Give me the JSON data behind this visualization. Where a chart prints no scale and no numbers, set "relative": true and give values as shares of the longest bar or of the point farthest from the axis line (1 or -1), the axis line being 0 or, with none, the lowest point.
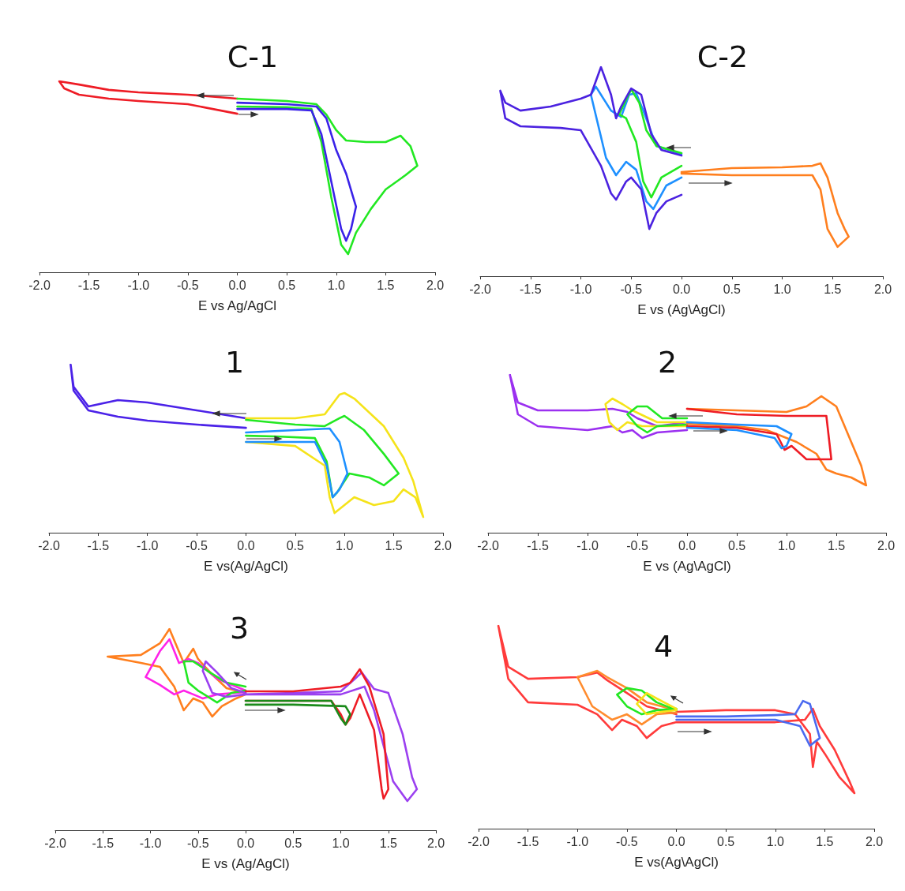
{
  "chart_data": [
    {
      "type": "line",
      "title": "C-1",
      "xlabel": "E vs Ag/AgCl",
      "relative": true,
      "tick_labels": "x",
      "xlim": [
        -2,
        2
      ],
      "xticks": [
        {
          "value": -2,
          "label": "-2.0"
        },
        {
          "value": -1.5,
          "label": "-1.5"
        },
        {
          "value": -1,
          "label": "-1.0"
        },
        {
          "value": -0.5,
          "label": "-0.5"
        },
        {
          "value": 0,
          "label": "0.0"
        },
        {
          "value": 0.5,
          "label": "0.5"
        },
        {
          "value": 1,
          "label": "1.0"
        },
        {
          "value": 1.5,
          "label": "1.5"
        },
        {
          "value": 2,
          "label": "2.0"
        }
      ],
      "series": [
        {
          "color": "#ee1c25",
          "x": [
            0,
            -0.5,
            -1.0,
            -1.3,
            -1.6,
            -1.8,
            -1.75,
            -1.6,
            -1.3,
            -1.0,
            -0.5,
            0
          ],
          "values": [
            0.909,
            0.93,
            0.942,
            0.955,
            0.983,
            1.0,
            0.963,
            0.93,
            0.909,
            0.897,
            0.88,
            0.83
          ]
        },
        {
          "color": "#22e822",
          "x": [
            0,
            0.5,
            0.8,
            0.9,
            1.0,
            1.1,
            1.3,
            1.5,
            1.65,
            1.75,
            1.82,
            1.7,
            1.5,
            1.35,
            1.2,
            1.12,
            1.05,
            0.95,
            0.85,
            0.75,
            0.5,
            0
          ],
          "values": [
            0.909,
            0.897,
            0.88,
            0.826,
            0.744,
            0.69,
            0.682,
            0.682,
            0.715,
            0.661,
            0.558,
            0.508,
            0.434,
            0.331,
            0.207,
            0.095,
            0.145,
            0.393,
            0.682,
            0.855,
            0.864,
            0.868
          ]
        },
        {
          "color": "#3a22e8",
          "x": [
            0,
            0.5,
            0.8,
            0.9,
            1.0,
            1.1,
            1.2,
            1.15,
            1.1,
            1.05,
            0.95,
            0.85,
            0.75,
            0.5,
            0
          ],
          "values": [
            0.888,
            0.88,
            0.868,
            0.806,
            0.64,
            0.517,
            0.343,
            0.227,
            0.165,
            0.227,
            0.475,
            0.723,
            0.847,
            0.855,
            0.855
          ]
        }
      ]
    },
    {
      "type": "line",
      "title": "C-2",
      "xlabel": "E vs (Ag\\AgCl)",
      "relative": true,
      "tick_labels": "x",
      "xlim": [
        -2,
        2
      ],
      "xticks": [
        {
          "value": -2,
          "label": "-2.0"
        },
        {
          "value": -1.5,
          "label": "-1.5"
        },
        {
          "value": -1,
          "label": "-1.0"
        },
        {
          "value": -0.5,
          "label": "-0.5"
        },
        {
          "value": 0,
          "label": "0.0"
        },
        {
          "value": 0.5,
          "label": "0.5"
        },
        {
          "value": 1,
          "label": "1.0"
        },
        {
          "value": 1.5,
          "label": "1.5"
        },
        {
          "value": 2,
          "label": "2.0"
        }
      ],
      "series": [
        {
          "color": "#ff7f1e",
          "x": [
            0,
            0.5,
            1.0,
            1.3,
            1.38,
            1.45,
            1.55,
            1.62,
            1.66,
            1.55,
            1.45,
            1.38,
            1.3,
            1.0,
            0.5,
            0
          ],
          "values": [
            0.498,
            0.517,
            0.521,
            0.528,
            0.54,
            0.472,
            0.302,
            0.226,
            0.189,
            0.14,
            0.226,
            0.415,
            0.483,
            0.483,
            0.483,
            0.491
          ]
        },
        {
          "color": "#1e90ff",
          "x": [
            0,
            -0.15,
            -0.28,
            -0.35,
            -0.45,
            -0.55,
            -0.65,
            -0.75,
            -0.9,
            -0.85,
            -0.7,
            -0.6,
            -0.52,
            -0.45,
            -0.38,
            -0.25,
            0
          ],
          "values": [
            0.472,
            0.434,
            0.321,
            0.358,
            0.509,
            0.547,
            0.483,
            0.566,
            0.868,
            0.906,
            0.792,
            0.762,
            0.868,
            0.875,
            0.792,
            0.623,
            0.585
          ]
        },
        {
          "color": "#22e822",
          "x": [
            0,
            -0.2,
            -0.3,
            -0.38,
            -0.45,
            -0.55,
            -0.62,
            -0.5,
            -0.42,
            -0.35,
            -0.25,
            0
          ],
          "values": [
            0.528,
            0.472,
            0.377,
            0.453,
            0.642,
            0.755,
            0.774,
            0.894,
            0.83,
            0.698,
            0.623,
            0.589
          ]
        },
        {
          "color": "#4b22e0",
          "x": [
            0,
            -0.2,
            -0.3,
            -0.4,
            -0.5,
            -0.6,
            -0.65,
            -0.7,
            -0.8,
            -0.9,
            -1.0,
            -1.3,
            -1.6,
            -1.75,
            -1.8,
            -1.75,
            -1.6,
            -1.2,
            -1.0,
            -0.8,
            -0.7,
            -0.65,
            -0.55,
            -0.5,
            -0.4,
            -0.32,
            -0.25,
            -0.15,
            0
          ],
          "values": [
            0.577,
            0.604,
            0.679,
            0.868,
            0.898,
            0.811,
            0.755,
            0.868,
            1.0,
            0.868,
            0.849,
            0.811,
            0.792,
            0.83,
            0.887,
            0.755,
            0.717,
            0.709,
            0.698,
            0.528,
            0.396,
            0.366,
            0.453,
            0.472,
            0.415,
            0.226,
            0.302,
            0.358,
            0.389
          ]
        }
      ]
    },
    {
      "type": "line",
      "title": "1",
      "xlabel": "E vs(Ag/AgCl)",
      "relative": true,
      "tick_labels": "x",
      "xlim": [
        -2,
        2
      ],
      "xticks": [
        {
          "value": -2,
          "label": "-2.0"
        },
        {
          "value": -1.5,
          "label": "-1.5"
        },
        {
          "value": -1,
          "label": "-1.0"
        },
        {
          "value": -0.5,
          "label": "-0.5"
        },
        {
          "value": 0,
          "label": "0.0"
        },
        {
          "value": 0.5,
          "label": "0.5"
        },
        {
          "value": 1,
          "label": "1.0"
        },
        {
          "value": 1.5,
          "label": "1.5"
        },
        {
          "value": 2,
          "label": "2.0"
        }
      ],
      "series": [
        {
          "color": "#4b22e8",
          "x": [
            0,
            -0.5,
            -1.0,
            -1.3,
            -1.6,
            -1.75,
            -1.78,
            -1.75,
            -1.6,
            -1.3,
            -1.0,
            -0.5,
            0
          ],
          "values": [
            0.681,
            0.728,
            0.775,
            0.789,
            0.751,
            0.869,
            1.0,
            0.845,
            0.728,
            0.69,
            0.667,
            0.643,
            0.624
          ]
        },
        {
          "color": "#f5e31a",
          "x": [
            0,
            0.5,
            0.8,
            0.95,
            1.0,
            1.1,
            1.4,
            1.6,
            1.7,
            1.8,
            1.72,
            1.6,
            1.5,
            1.3,
            1.1,
            1.0,
            0.9,
            0.85,
            0.8,
            0.5,
            0
          ],
          "values": [
            0.681,
            0.681,
            0.704,
            0.822,
            0.831,
            0.798,
            0.634,
            0.446,
            0.305,
            0.094,
            0.211,
            0.258,
            0.188,
            0.164,
            0.211,
            0.164,
            0.117,
            0.211,
            0.399,
            0.516,
            0.54
          ]
        },
        {
          "color": "#22e822",
          "x": [
            0,
            0.5,
            0.8,
            0.95,
            1.0,
            1.2,
            1.4,
            1.55,
            1.4,
            1.25,
            1.05,
            0.92,
            0.88,
            0.82,
            0.7,
            0.3,
            0
          ],
          "values": [
            0.671,
            0.643,
            0.634,
            0.681,
            0.695,
            0.61,
            0.469,
            0.352,
            0.282,
            0.329,
            0.352,
            0.235,
            0.211,
            0.423,
            0.563,
            0.573,
            0.577
          ]
        },
        {
          "color": "#1e90ff",
          "x": [
            0,
            0.5,
            0.85,
            0.95,
            1.03,
            0.95,
            0.88,
            0.82,
            0.7,
            0.3,
            0
          ],
          "values": [
            0.596,
            0.61,
            0.62,
            0.54,
            0.352,
            0.258,
            0.211,
            0.399,
            0.54,
            0.54,
            0.54
          ]
        }
      ]
    },
    {
      "type": "line",
      "title": "2",
      "xlabel": "E vs (Ag\\AgCl)",
      "relative": true,
      "tick_labels": "x",
      "xlim": [
        -2,
        2
      ],
      "xticks": [
        {
          "value": -2,
          "label": "-2.0"
        },
        {
          "value": -1.5,
          "label": "-1.5"
        },
        {
          "value": -1,
          "label": "-1.0"
        },
        {
          "value": -0.5,
          "label": "-0.5"
        },
        {
          "value": 0,
          "label": "0.0"
        },
        {
          "value": 0.5,
          "label": "0.5"
        },
        {
          "value": 1,
          "label": "1.0"
        },
        {
          "value": 1.5,
          "label": "1.5"
        },
        {
          "value": 2,
          "label": "2.0"
        }
      ],
      "series": [
        {
          "color": "#9b30f0",
          "x": [
            0,
            -0.3,
            -0.5,
            -0.6,
            -0.75,
            -1.0,
            -1.5,
            -1.7,
            -1.78,
            -1.7,
            -1.5,
            -1.0,
            -0.75,
            -0.65,
            -0.55,
            -0.45,
            -0.3,
            0
          ],
          "values": [
            0.7,
            0.675,
            0.725,
            0.765,
            0.785,
            0.775,
            0.775,
            0.825,
            1.0,
            0.75,
            0.675,
            0.65,
            0.675,
            0.635,
            0.65,
            0.6,
            0.635,
            0.65
          ]
        },
        {
          "color": "#f5e31a",
          "x": [
            0,
            -0.3,
            -0.55,
            -0.65,
            -0.75,
            -0.82,
            -0.78,
            -0.7,
            -0.6,
            -0.45,
            -0.3,
            0
          ],
          "values": [
            0.7,
            0.7,
            0.775,
            0.815,
            0.85,
            0.815,
            0.7,
            0.65,
            0.7,
            0.675,
            0.675,
            0.675
          ]
        },
        {
          "color": "#22e822",
          "x": [
            0,
            -0.25,
            -0.4,
            -0.5,
            -0.6,
            -0.5,
            -0.4,
            -0.3,
            0
          ],
          "values": [
            0.725,
            0.725,
            0.8,
            0.8,
            0.75,
            0.675,
            0.635,
            0.675,
            0.685
          ]
        },
        {
          "color": "#ff7f1e",
          "x": [
            0,
            0.5,
            1.0,
            1.2,
            1.35,
            1.5,
            1.65,
            1.75,
            1.8,
            1.65,
            1.5,
            1.4,
            1.3,
            1.1,
            0.8,
            0.5,
            0
          ],
          "values": [
            0.785,
            0.775,
            0.765,
            0.8,
            0.865,
            0.8,
            0.575,
            0.425,
            0.3,
            0.35,
            0.375,
            0.4,
            0.5,
            0.575,
            0.65,
            0.675,
            0.69
          ]
        },
        {
          "color": "#ee1c25",
          "x": [
            0,
            0.5,
            1.0,
            1.4,
            1.45,
            1.2,
            1.05,
            0.98,
            0.9,
            0.5,
            0
          ],
          "values": [
            0.785,
            0.75,
            0.74,
            0.74,
            0.465,
            0.465,
            0.55,
            0.525,
            0.625,
            0.665,
            0.675
          ]
        },
        {
          "color": "#1e90ff",
          "x": [
            0,
            0.5,
            0.9,
            1.05,
            1.0,
            0.95,
            0.88,
            0.5,
            0
          ],
          "values": [
            0.7,
            0.685,
            0.675,
            0.625,
            0.55,
            0.535,
            0.6,
            0.65,
            0.665
          ]
        }
      ]
    },
    {
      "type": "line",
      "title": "3",
      "xlabel": "E vs (Ag/AgCl)",
      "relative": true,
      "tick_labels": "x",
      "xlim": [
        -2,
        2
      ],
      "xticks": [
        {
          "value": -2,
          "label": "-2.0"
        },
        {
          "value": -1.5,
          "label": "-1.5"
        },
        {
          "value": -1,
          "label": "-1.0"
        },
        {
          "value": -0.5,
          "label": "-0.5"
        },
        {
          "value": 0,
          "label": "0.0"
        },
        {
          "value": 0.5,
          "label": "0.5"
        },
        {
          "value": 1,
          "label": "1.0"
        },
        {
          "value": 1.5,
          "label": "1.5"
        },
        {
          "value": 2,
          "label": "2.0"
        }
      ],
      "series": [
        {
          "color": "#ff7f1e",
          "x": [
            0,
            -0.2,
            -0.35,
            -0.5,
            -0.55,
            -0.65,
            -0.8,
            -0.9,
            -1.1,
            -1.45,
            -1.1,
            -0.9,
            -0.75,
            -0.65,
            -0.55,
            -0.45,
            -0.35,
            -0.25,
            -0.1,
            0
          ],
          "values": [
            0.682,
            0.706,
            0.773,
            0.851,
            0.902,
            0.831,
            1.0,
            0.929,
            0.871,
            0.863,
            0.831,
            0.812,
            0.714,
            0.596,
            0.655,
            0.635,
            0.565,
            0.616,
            0.655,
            0.675
          ]
        },
        {
          "color": "#ff22e8",
          "x": [
            0,
            -0.3,
            -0.5,
            -0.6,
            -0.7,
            -0.8,
            -0.9,
            -1.05,
            -0.9,
            -0.75,
            -0.65,
            -0.55,
            -0.45,
            -0.3,
            0
          ],
          "values": [
            0.694,
            0.753,
            0.831,
            0.851,
            0.831,
            0.949,
            0.89,
            0.761,
            0.722,
            0.675,
            0.694,
            0.675,
            0.655,
            0.675,
            0.686
          ]
        },
        {
          "color": "#22e822",
          "x": [
            0,
            -0.2,
            -0.4,
            -0.55,
            -0.65,
            -0.6,
            -0.5,
            -0.3,
            -0.15,
            0
          ],
          "values": [
            0.714,
            0.733,
            0.792,
            0.839,
            0.839,
            0.733,
            0.694,
            0.635,
            0.682,
            0.694
          ]
        },
        {
          "color": "#9b40f0",
          "x": [
            0,
            -0.15,
            -0.3,
            -0.42,
            -0.45,
            -0.35,
            -0.2,
            0,
            0.5,
            1.0,
            1.15,
            1.22,
            1.35,
            1.5,
            1.65,
            1.75,
            1.8,
            1.7,
            1.55,
            1.45,
            1.35,
            1.25,
            1.0,
            0.5,
            0
          ],
          "values": [
            0.682,
            0.706,
            0.784,
            0.839,
            0.792,
            0.682,
            0.663,
            0.675,
            0.682,
            0.69,
            0.753,
            0.784,
            0.702,
            0.682,
            0.478,
            0.263,
            0.204,
            0.145,
            0.243,
            0.42,
            0.596,
            0.714,
            0.675,
            0.675,
            0.675
          ]
        },
        {
          "color": "#ee1c25",
          "x": [
            0,
            0.9,
            1.0,
            1.05,
            1.1,
            1.2,
            1.35,
            1.43,
            1.45,
            1.5,
            1.45,
            1.3,
            1.2,
            1.1,
            1.0,
            0.5,
            0
          ],
          "values": [
            0.643,
            0.643,
            0.576,
            0.525,
            0.557,
            0.675,
            0.498,
            0.204,
            0.157,
            0.204,
            0.478,
            0.714,
            0.8,
            0.733,
            0.714,
            0.69,
            0.69
          ]
        },
        {
          "color": "#1a8a1a",
          "x": [
            0,
            0.5,
            0.9,
            1.0,
            1.05,
            1.1,
            1.05,
            0.5,
            0
          ],
          "values": [
            0.643,
            0.643,
            0.643,
            0.557,
            0.525,
            0.576,
            0.616,
            0.624,
            0.624
          ]
        }
      ]
    },
    {
      "type": "line",
      "title": "4",
      "xlabel": "E vs(Ag\\AgCl)",
      "relative": true,
      "tick_labels": "x",
      "xlim": [
        -2,
        2
      ],
      "xticks": [
        {
          "value": -2,
          "label": "-2.0"
        },
        {
          "value": -1.5,
          "label": "-1.5"
        },
        {
          "value": -1,
          "label": "-1.0"
        },
        {
          "value": -0.5,
          "label": "-0.5"
        },
        {
          "value": 0,
          "label": "0.0"
        },
        {
          "value": 0.5,
          "label": "0.5"
        },
        {
          "value": 1,
          "label": "1.0"
        },
        {
          "value": 1.5,
          "label": "1.5"
        },
        {
          "value": 2,
          "label": "2.0"
        }
      ],
      "series": [
        {
          "color": "#ff3b3b",
          "x": [
            0,
            -0.3,
            -0.5,
            -0.7,
            -0.8,
            -1.0,
            -1.5,
            -1.7,
            -1.8,
            -1.7,
            -1.5,
            -1.0,
            -0.8,
            -0.65,
            -0.55,
            -0.4,
            -0.3,
            -0.15,
            0,
            0.5,
            1.0,
            1.3,
            1.38,
            1.45,
            1.6,
            1.75,
            1.8,
            1.65,
            1.5,
            1.42,
            1.38,
            1.35,
            1.2,
            1.0,
            0.5,
            0
          ],
          "values": [
            0.564,
            0.603,
            0.669,
            0.732,
            0.77,
            0.747,
            0.739,
            0.798,
            1.0,
            0.739,
            0.623,
            0.611,
            0.564,
            0.486,
            0.537,
            0.506,
            0.447,
            0.506,
            0.525,
            0.525,
            0.525,
            0.537,
            0.591,
            0.506,
            0.389,
            0.233,
            0.175,
            0.253,
            0.37,
            0.428,
            0.304,
            0.467,
            0.564,
            0.584,
            0.584,
            0.576
          ]
        },
        {
          "color": "#ff8c2e",
          "x": [
            0,
            -0.3,
            -0.5,
            -0.7,
            -0.8,
            -1.0,
            -0.85,
            -0.65,
            -0.5,
            -0.35,
            -0.2,
            0
          ],
          "values": [
            0.584,
            0.623,
            0.693,
            0.747,
            0.778,
            0.747,
            0.603,
            0.537,
            0.564,
            0.514,
            0.564,
            0.572
          ]
        },
        {
          "color": "#22e822",
          "x": [
            0,
            -0.2,
            -0.35,
            -0.5,
            -0.6,
            -0.5,
            -0.35,
            -0.2,
            0
          ],
          "values": [
            0.584,
            0.623,
            0.681,
            0.693,
            0.661,
            0.603,
            0.564,
            0.584,
            0.591
          ]
        },
        {
          "color": "#f5e31a",
          "x": [
            0,
            -0.2,
            -0.3,
            -0.4,
            -0.3,
            -0.15,
            0
          ],
          "values": [
            0.591,
            0.642,
            0.669,
            0.615,
            0.564,
            0.576,
            0.584
          ]
        },
        {
          "color": "#4b6af0",
          "x": [
            0,
            0.5,
            1.0,
            1.2,
            1.28,
            1.35,
            1.45,
            1.35,
            1.25,
            1.0,
            0.5,
            0
          ],
          "values": [
            0.553,
            0.553,
            0.56,
            0.564,
            0.63,
            0.615,
            0.447,
            0.409,
            0.506,
            0.537,
            0.537,
            0.537
          ]
        }
      ]
    }
  ]
}
